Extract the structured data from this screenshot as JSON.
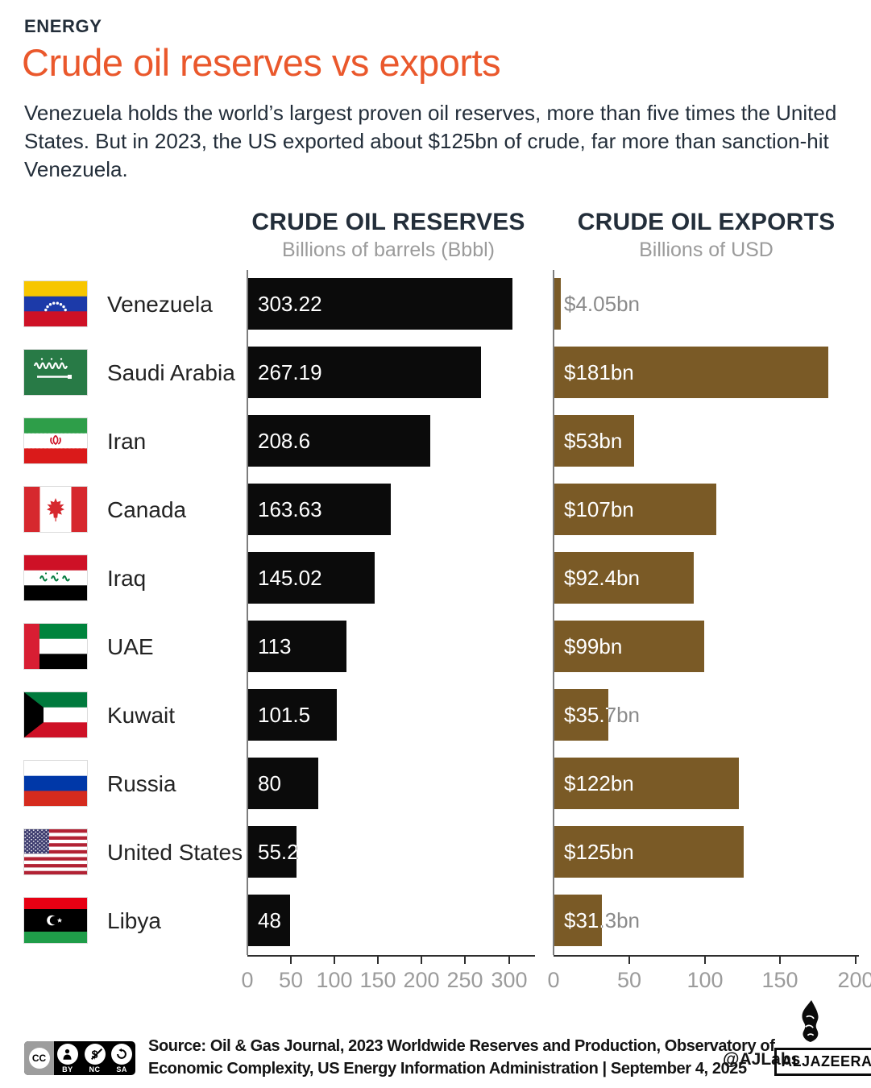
{
  "kicker": "ENERGY",
  "title": "Crude oil reserves vs exports",
  "intro": "Venezuela holds the world’s largest proven oil reserves, more than five times the United States. But in 2023, the US exported about $125bn of crude, far more than sanction-hit Venezuela.",
  "colors": {
    "accent_orange": "#EA582C",
    "heading_navy": "#232E3A",
    "reserves_bar": "#0B0B0B",
    "exports_bar": "#7A5A26",
    "muted_gray": "#9B9B9B"
  },
  "chart_data": {
    "type": "bar",
    "orientation": "horizontal",
    "categories": [
      "Venezuela",
      "Saudi Arabia",
      "Iran",
      "Canada",
      "Iraq",
      "UAE",
      "Kuwait",
      "Russia",
      "United States",
      "Libya"
    ],
    "flags": [
      "venezuela",
      "saudi-arabia",
      "iran",
      "canada",
      "iraq",
      "uae",
      "kuwait",
      "russia",
      "united-states",
      "libya"
    ],
    "series": [
      {
        "name": "CRUDE OIL RESERVES",
        "subtitle": "Billions of barrels (Bbbl)",
        "values": [
          303.22,
          267.19,
          208.6,
          163.63,
          145.02,
          113,
          101.5,
          80,
          55.2,
          48
        ],
        "labels": [
          "303.22",
          "267.19",
          "208.6",
          "163.63",
          "145.02",
          "113",
          "101.5",
          "80",
          "55.2",
          "48"
        ],
        "axis_ticks": [
          0,
          50,
          100,
          150,
          200,
          250,
          300
        ],
        "axis_max": 330,
        "bar_color": "#0B0B0B"
      },
      {
        "name": "CRUDE OIL EXPORTS",
        "subtitle": "Billions of USD",
        "values": [
          4.05,
          181,
          53,
          107,
          92.4,
          99,
          35.7,
          122,
          125,
          31.3
        ],
        "labels": [
          "$4.05bn",
          "$181bn",
          "$53bn",
          "$107bn",
          "$92.4bn",
          "$99bn",
          "$35.7bn",
          "$122bn",
          "$125bn",
          "$31.3bn"
        ],
        "axis_ticks": [
          0,
          50,
          100,
          150,
          200
        ],
        "axis_max": 202,
        "bar_color": "#7A5A26"
      }
    ],
    "grid": false,
    "legend": false
  },
  "footer": {
    "cc_badges": [
      "CC",
      "BY",
      "NC",
      "SA"
    ],
    "source_line": "Source: Oil & Gas Journal, 2023 Worldwide Reserves and Production, Observatory of Economic Complexity, US Energy Information Administration  |  September 4, 2025",
    "credit": "@AJLabs",
    "logo_text": "ALJAZEERA"
  }
}
